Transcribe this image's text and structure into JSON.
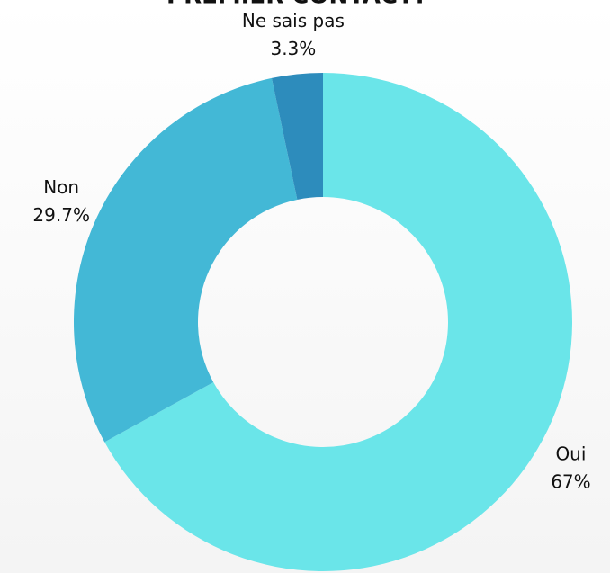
{
  "chart_data": {
    "type": "donut",
    "title": "PREMIER CONTACT?",
    "categories": [
      "Oui",
      "Non",
      "Ne sais pas"
    ],
    "values": [
      67,
      29.7,
      3.3
    ],
    "value_labels": [
      "67%",
      "29.7%",
      "3.3%"
    ],
    "colors": [
      "#6ae5e9",
      "#43b8d6",
      "#2d8cbc"
    ]
  }
}
